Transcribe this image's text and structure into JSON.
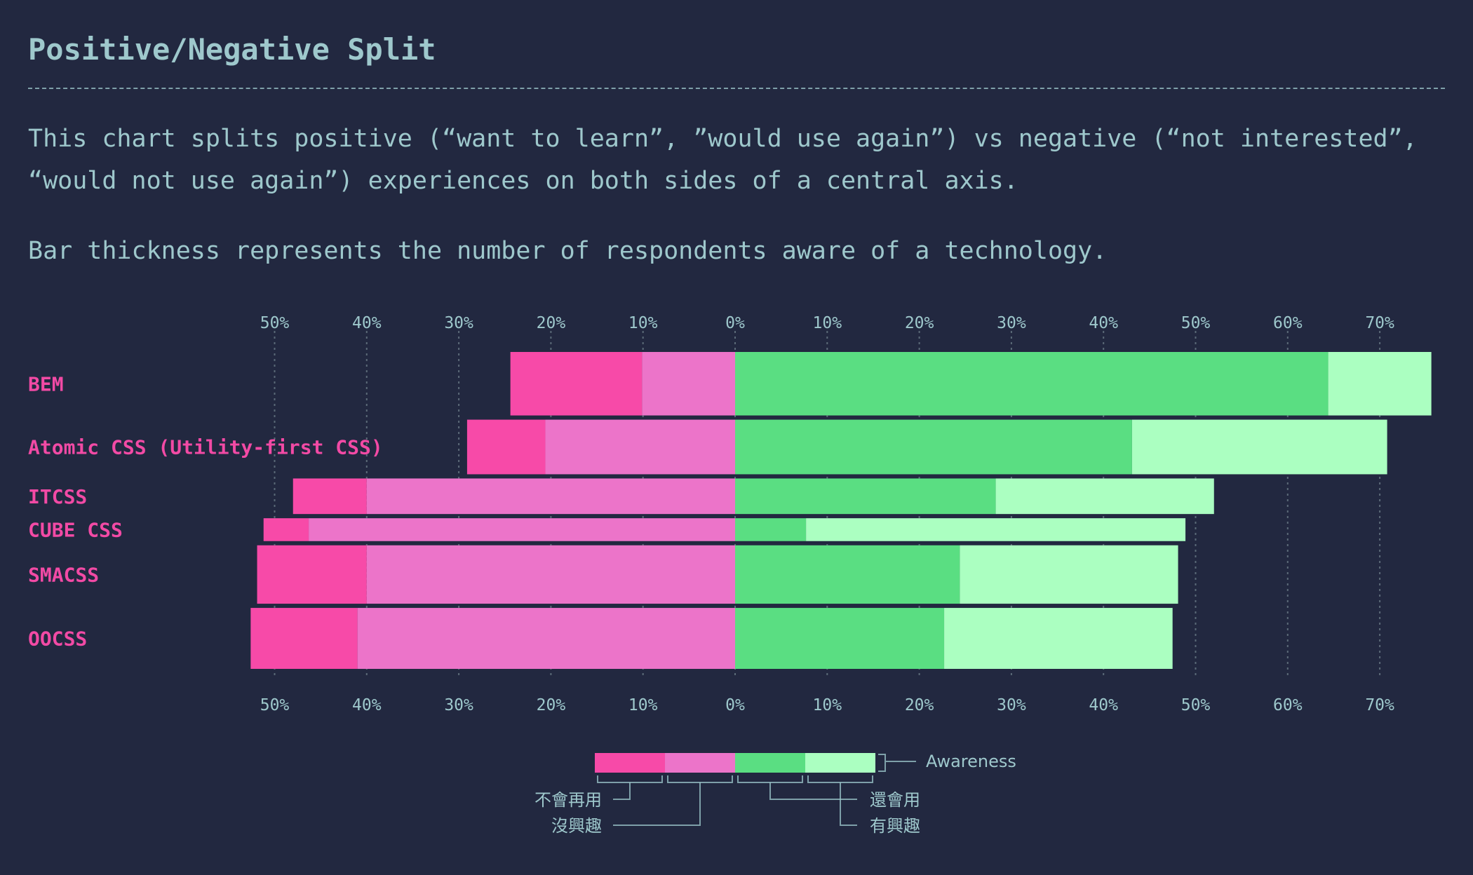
{
  "title": "Positive/Negative Split",
  "description": [
    "This chart splits positive (“want to learn”, ”would use again”) vs negative (“not interested”, “would not use again”) experiences on both sides of a central axis.",
    "Bar thickness represents the number of respondents aware of a technology."
  ],
  "colors": {
    "background": "#222840",
    "text": "#9ec8cc",
    "would_not_use": "#f74aa8",
    "not_interested": "#ec74c9",
    "would_use": "#5ade82",
    "interested": "#abffc1",
    "label": "#f24aa5"
  },
  "chart_data": {
    "type": "bar",
    "orientation": "horizontal-diverging",
    "axis_ticks": [
      "50%",
      "40%",
      "30%",
      "20%",
      "10%",
      "0%",
      "10%",
      "20%",
      "30%",
      "40%",
      "50%",
      "60%",
      "70%"
    ],
    "xlim": [
      -50,
      70
    ],
    "grid": true,
    "categories": [
      "BEM",
      "Atomic CSS (Utility-first CSS)",
      "ITCSS",
      "CUBE CSS",
      "SMACSS",
      "OOCSS"
    ],
    "awareness": [
      100,
      86,
      56,
      36,
      92,
      96
    ],
    "series": [
      {
        "name": "不會再用",
        "side": "negative",
        "values": [
          14.3,
          8.5,
          8.0,
          4.9,
          11.9,
          11.6
        ]
      },
      {
        "name": "沒興趣",
        "side": "negative",
        "values": [
          10.1,
          20.6,
          40.0,
          46.3,
          40.0,
          41.0
        ]
      },
      {
        "name": "還會用",
        "side": "positive",
        "values": [
          64.4,
          43.1,
          28.3,
          7.7,
          24.4,
          22.7
        ]
      },
      {
        "name": "有興趣",
        "side": "positive",
        "values": [
          11.2,
          27.7,
          23.7,
          41.2,
          23.7,
          24.8
        ]
      }
    ],
    "legend": {
      "awareness_label": "Awareness",
      "labels": [
        "不會再用",
        "沒興趣",
        "還會用",
        "有興趣"
      ],
      "placement": "bottom-center"
    }
  }
}
